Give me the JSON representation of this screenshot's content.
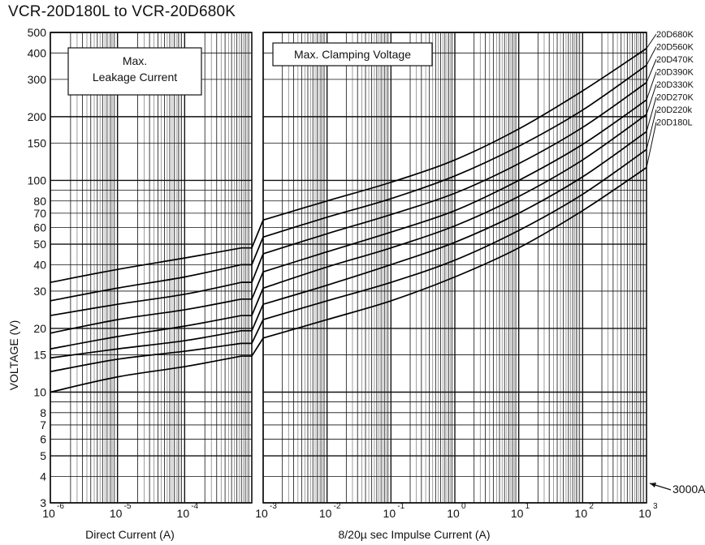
{
  "title": "VCR-20D180L to VCR-20D680K",
  "chart_data": [
    {
      "type": "line",
      "panel": "left",
      "box_label": [
        "Max.",
        "Leakage Current"
      ],
      "xlabel": "Direct Current  (A)",
      "ylabel": "VOLTAGE (V)",
      "xscale": "log",
      "yscale": "log",
      "xlim": [
        1e-06,
        0.001
      ],
      "ylim": [
        3,
        500
      ],
      "x_ticks": [
        {
          "base": "10",
          "exp": "-6"
        },
        {
          "base": "10",
          "exp": "-5"
        },
        {
          "base": "10",
          "exp": "-4"
        }
      ],
      "y_ticks": [
        "500",
        "400",
        "300",
        "200",
        "150",
        "100",
        "80",
        "70",
        "60",
        "50",
        "40",
        "30",
        "20",
        "15",
        "10",
        "8",
        "7",
        "6",
        "5",
        "4",
        "3"
      ],
      "x": [
        1e-06,
        1e-05,
        0.0001,
        0.0007
      ],
      "series": [
        {
          "name": "20D680K",
          "values": [
            33,
            38,
            43,
            48
          ]
        },
        {
          "name": "20D560K",
          "values": [
            27,
            31,
            35,
            40
          ]
        },
        {
          "name": "20D470K",
          "values": [
            23,
            26,
            29,
            33
          ]
        },
        {
          "name": "20D390K",
          "values": [
            19,
            22,
            24.5,
            27.5
          ]
        },
        {
          "name": "20D330K",
          "values": [
            16,
            18.3,
            20.5,
            23
          ]
        },
        {
          "name": "20D270K",
          "values": [
            14.5,
            16,
            17.5,
            19.5
          ]
        },
        {
          "name": "20D220k",
          "values": [
            12.5,
            14.3,
            15.6,
            17
          ]
        },
        {
          "name": "20D180L",
          "values": [
            10,
            11.8,
            13.2,
            14.8
          ]
        }
      ]
    },
    {
      "type": "line",
      "panel": "right",
      "box_label": [
        "Max.  Clamping Voltage"
      ],
      "xlabel": "8/20µ sec Impulse Current (A)",
      "ylabel": "VOLTAGE (V)",
      "xscale": "log",
      "yscale": "log",
      "xlim": [
        0.001,
        1000.0
      ],
      "ylim": [
        3,
        500
      ],
      "x_ticks": [
        {
          "base": "10",
          "exp": "-3"
        },
        {
          "base": "10",
          "exp": "-2"
        },
        {
          "base": "10",
          "exp": "-1"
        },
        {
          "base": "10",
          "exp": "0"
        },
        {
          "base": "10",
          "exp": "1"
        },
        {
          "base": "10",
          "exp": "2"
        },
        {
          "base": "10",
          "exp": "3"
        }
      ],
      "x": [
        0.001,
        0.01,
        0.1,
        1,
        10,
        100,
        1000
      ],
      "series": [
        {
          "name": "20D680K",
          "values": [
            65,
            80,
            98,
            125,
            175,
            265,
            420
          ]
        },
        {
          "name": "20D560K",
          "values": [
            54,
            67,
            82,
            105,
            145,
            215,
            350
          ]
        },
        {
          "name": "20D470K",
          "values": [
            45,
            56,
            69,
            87,
            120,
            178,
            290
          ]
        },
        {
          "name": "20D390K",
          "values": [
            37,
            46,
            57,
            72,
            100,
            148,
            240
          ]
        },
        {
          "name": "20D330K",
          "values": [
            31,
            39,
            48,
            61,
            84,
            125,
            205
          ]
        },
        {
          "name": "20D270K",
          "values": [
            26,
            32,
            40,
            51,
            70,
            104,
            170
          ]
        },
        {
          "name": "20D220k",
          "values": [
            22,
            27,
            33,
            42,
            58,
            86,
            140
          ]
        },
        {
          "name": "20D180L",
          "values": [
            18,
            22,
            27,
            35,
            48,
            72,
            115
          ]
        }
      ],
      "annotation": "3000A",
      "annotation_voltage": 3.9
    }
  ]
}
